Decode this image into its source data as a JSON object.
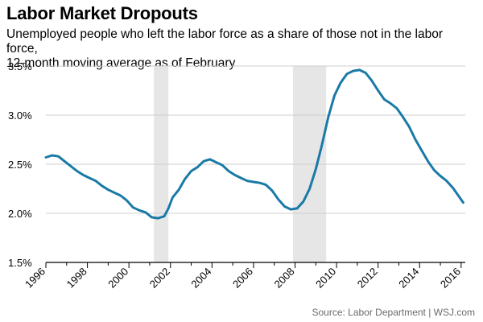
{
  "title": "Labor Market Dropouts",
  "subtitle_line1": "Unemployed people who left the labor force as a share of those not in the labor force,",
  "subtitle_line2": "12-month moving average as of February",
  "source": "Source: Labor Department  |  WSJ.com",
  "colors": {
    "line": "#1a7aa6",
    "recession": "#e6e6e6",
    "grid": "#cfcfcf",
    "axis": "#000000"
  },
  "chart_data": {
    "type": "line",
    "title": "Labor Market Dropouts",
    "subtitle": "Unemployed people who left the labor force as a share of those not in the labor force, 12-month moving average as of February",
    "xlabel": "",
    "ylabel": "",
    "xlim": [
      1996,
      2016.2
    ],
    "ylim": [
      1.5,
      3.5
    ],
    "x_ticks": [
      1996,
      1998,
      2000,
      2002,
      2004,
      2006,
      2008,
      2010,
      2012,
      2014,
      2016
    ],
    "y_ticks": [
      1.5,
      2.0,
      2.5,
      3.0,
      3.5
    ],
    "y_tick_labels": [
      "1.5%",
      "2.0%",
      "2.5%",
      "3.0%",
      "3.5%"
    ],
    "grid": "horizontal",
    "shaded_periods": [
      {
        "start": 2001.2,
        "end": 2001.9
      },
      {
        "start": 2007.9,
        "end": 2009.5
      }
    ],
    "series": [
      {
        "values": [
          [
            1996.0,
            2.57
          ],
          [
            1996.3,
            2.59
          ],
          [
            1996.6,
            2.58
          ],
          [
            1996.9,
            2.53
          ],
          [
            1997.2,
            2.48
          ],
          [
            1997.5,
            2.43
          ],
          [
            1997.8,
            2.39
          ],
          [
            1998.1,
            2.36
          ],
          [
            1998.4,
            2.33
          ],
          [
            1998.7,
            2.28
          ],
          [
            1999.0,
            2.24
          ],
          [
            1999.3,
            2.21
          ],
          [
            1999.6,
            2.18
          ],
          [
            1999.9,
            2.13
          ],
          [
            2000.2,
            2.06
          ],
          [
            2000.5,
            2.03
          ],
          [
            2000.8,
            2.01
          ],
          [
            2001.1,
            1.96
          ],
          [
            2001.4,
            1.95
          ],
          [
            2001.7,
            1.97
          ],
          [
            2001.9,
            2.05
          ],
          [
            2002.1,
            2.16
          ],
          [
            2002.4,
            2.24
          ],
          [
            2002.7,
            2.35
          ],
          [
            2003.0,
            2.43
          ],
          [
            2003.3,
            2.47
          ],
          [
            2003.6,
            2.53
          ],
          [
            2003.9,
            2.55
          ],
          [
            2004.2,
            2.52
          ],
          [
            2004.5,
            2.49
          ],
          [
            2004.8,
            2.43
          ],
          [
            2005.1,
            2.39
          ],
          [
            2005.4,
            2.36
          ],
          [
            2005.7,
            2.33
          ],
          [
            2006.0,
            2.32
          ],
          [
            2006.3,
            2.31
          ],
          [
            2006.6,
            2.29
          ],
          [
            2006.9,
            2.23
          ],
          [
            2007.2,
            2.14
          ],
          [
            2007.5,
            2.07
          ],
          [
            2007.8,
            2.04
          ],
          [
            2008.1,
            2.05
          ],
          [
            2008.4,
            2.12
          ],
          [
            2008.7,
            2.25
          ],
          [
            2009.0,
            2.45
          ],
          [
            2009.3,
            2.7
          ],
          [
            2009.6,
            2.98
          ],
          [
            2009.9,
            3.2
          ],
          [
            2010.2,
            3.33
          ],
          [
            2010.5,
            3.42
          ],
          [
            2010.8,
            3.45
          ],
          [
            2011.1,
            3.46
          ],
          [
            2011.4,
            3.43
          ],
          [
            2011.7,
            3.35
          ],
          [
            2012.0,
            3.25
          ],
          [
            2012.3,
            3.16
          ],
          [
            2012.6,
            3.12
          ],
          [
            2012.9,
            3.07
          ],
          [
            2013.2,
            2.98
          ],
          [
            2013.5,
            2.88
          ],
          [
            2013.8,
            2.75
          ],
          [
            2014.1,
            2.64
          ],
          [
            2014.4,
            2.53
          ],
          [
            2014.7,
            2.44
          ],
          [
            2015.0,
            2.38
          ],
          [
            2015.3,
            2.33
          ],
          [
            2015.6,
            2.26
          ],
          [
            2015.9,
            2.17
          ],
          [
            2016.1,
            2.11
          ]
        ]
      }
    ]
  }
}
